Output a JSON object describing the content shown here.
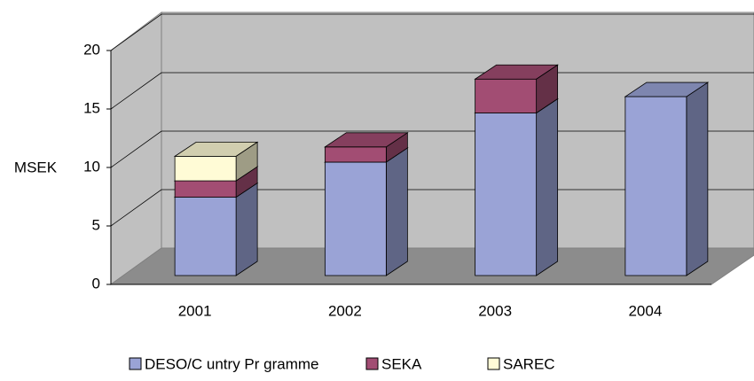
{
  "chart_data": {
    "type": "bar3d_stacked",
    "y_label": "MSEK",
    "categories": [
      "2001",
      "2002",
      "2003",
      "2004"
    ],
    "series": [
      {
        "name": "DESO/C untry Pr gramme",
        "color": "#9aa3d6",
        "values": [
          6.7,
          9.7,
          13.9,
          15.3
        ]
      },
      {
        "name": "SEKA",
        "color": "#a24d73",
        "values": [
          1.4,
          1.3,
          2.9,
          null
        ]
      },
      {
        "name": "SAREC",
        "color": "#fffbd6",
        "values": [
          2.1,
          null,
          null,
          null
        ]
      }
    ],
    "ylim": [
      0,
      20
    ],
    "yticks": [
      0,
      5,
      10,
      15,
      20
    ],
    "grid": true
  }
}
